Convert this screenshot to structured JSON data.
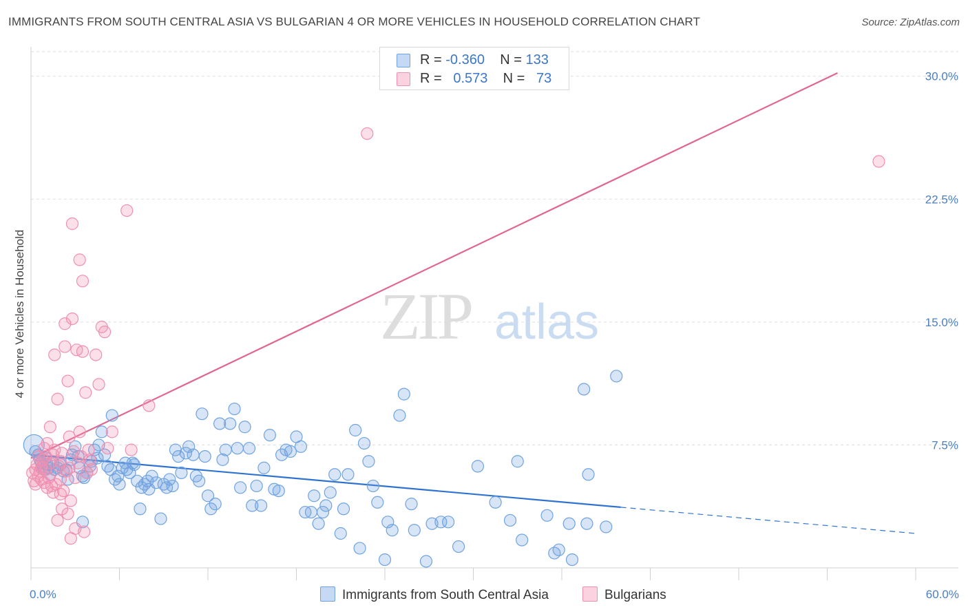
{
  "title": "IMMIGRANTS FROM SOUTH CENTRAL ASIA VS BULGARIAN 4 OR MORE VEHICLES IN HOUSEHOLD CORRELATION CHART",
  "source": "Source: ZipAtlas.com",
  "watermark": {
    "zip": "ZIP",
    "atlas": "atlas"
  },
  "legend": {
    "rows": [
      {
        "r_label": "R =",
        "r_value": "-0.360",
        "n_label": "N =",
        "n_value": "133",
        "color": "#6fa3e0"
      },
      {
        "r_label": "R =",
        "r_value": "0.573",
        "n_label": "N =",
        "n_value": "73",
        "color": "#f08fb0"
      }
    ]
  },
  "bottom_legend": {
    "items": [
      {
        "label": "Immigrants from South Central Asia",
        "color": "#6fa3e0"
      },
      {
        "label": "Bulgarians",
        "color": "#f08fb0"
      }
    ]
  },
  "chart_data": {
    "type": "scatter",
    "title": "IMMIGRANTS FROM SOUTH CENTRAL ASIA VS BULGARIAN 4 OR MORE VEHICLES IN HOUSEHOLD CORRELATION CHART",
    "xlabel": "",
    "ylabel": "4 or more Vehicles in Household",
    "xlim": [
      0,
      60
    ],
    "ylim": [
      0,
      31.5
    ],
    "x_tick_labels": [
      "0.0%",
      "60.0%"
    ],
    "y_ticks": [
      7.5,
      15.0,
      22.5,
      30.0
    ],
    "y_tick_labels": [
      "7.5%",
      "15.0%",
      "22.5%",
      "30.0%"
    ],
    "grid": true,
    "legend_position": "top-center",
    "series": [
      {
        "name": "Immigrants from South Central Asia",
        "color": "#6fa3e0",
        "r": -0.36,
        "n": 133,
        "trend": {
          "x0": 0,
          "y0": 6.9,
          "x1": 40,
          "y1": 3.7,
          "dash_to_x": 60,
          "dash_to_y": 2.1
        },
        "points": [
          [
            0.2,
            7.5
          ],
          [
            0.3,
            7.1
          ],
          [
            0.5,
            6.9
          ],
          [
            0.6,
            6.6
          ],
          [
            0.7,
            6.4
          ],
          [
            0.8,
            6.2
          ],
          [
            0.9,
            6.0
          ],
          [
            1.0,
            6.7
          ],
          [
            1.1,
            6.3
          ],
          [
            1.2,
            6.1
          ],
          [
            1.3,
            5.7
          ],
          [
            1.5,
            6.4
          ],
          [
            1.6,
            6.0
          ],
          [
            1.8,
            6.1
          ],
          [
            2.0,
            6.3
          ],
          [
            2.2,
            5.9
          ],
          [
            2.4,
            6.0
          ],
          [
            2.5,
            5.4
          ],
          [
            2.7,
            6.6
          ],
          [
            2.8,
            6.9
          ],
          [
            3.0,
            7.4
          ],
          [
            3.2,
            6.8
          ],
          [
            3.3,
            6.1
          ],
          [
            3.5,
            5.6
          ],
          [
            3.6,
            5.5
          ],
          [
            3.8,
            5.8
          ],
          [
            4.0,
            6.2
          ],
          [
            4.1,
            6.5
          ],
          [
            4.3,
            7.2
          ],
          [
            4.5,
            6.7
          ],
          [
            4.6,
            7.5
          ],
          [
            4.8,
            8.3
          ],
          [
            5.0,
            6.9
          ],
          [
            5.2,
            6.2
          ],
          [
            5.4,
            6.0
          ],
          [
            5.5,
            9.3
          ],
          [
            5.7,
            5.4
          ],
          [
            5.9,
            5.6
          ],
          [
            6.0,
            5.1
          ],
          [
            6.2,
            6.1
          ],
          [
            6.4,
            6.4
          ],
          [
            6.5,
            6.0
          ],
          [
            6.7,
            5.8
          ],
          [
            6.9,
            6.4
          ],
          [
            7.0,
            6.3
          ],
          [
            7.2,
            5.3
          ],
          [
            7.4,
            3.6
          ],
          [
            7.5,
            4.9
          ],
          [
            7.7,
            5.1
          ],
          [
            7.9,
            5.3
          ],
          [
            8.0,
            4.8
          ],
          [
            8.2,
            5.6
          ],
          [
            8.5,
            5.2
          ],
          [
            8.8,
            3.0
          ],
          [
            9.0,
            5.1
          ],
          [
            9.2,
            4.9
          ],
          [
            9.4,
            5.4
          ],
          [
            9.6,
            5.0
          ],
          [
            9.8,
            7.2
          ],
          [
            10.0,
            6.8
          ],
          [
            10.2,
            5.8
          ],
          [
            10.5,
            7.0
          ],
          [
            10.7,
            7.4
          ],
          [
            11.0,
            6.9
          ],
          [
            11.2,
            5.6
          ],
          [
            11.4,
            5.3
          ],
          [
            11.6,
            9.4
          ],
          [
            11.8,
            6.8
          ],
          [
            12.0,
            4.4
          ],
          [
            12.2,
            3.6
          ],
          [
            12.5,
            3.9
          ],
          [
            12.8,
            8.8
          ],
          [
            13.0,
            6.6
          ],
          [
            13.2,
            7.2
          ],
          [
            13.5,
            8.8
          ],
          [
            13.8,
            9.7
          ],
          [
            14.0,
            7.3
          ],
          [
            14.2,
            4.9
          ],
          [
            14.5,
            8.6
          ],
          [
            14.8,
            7.3
          ],
          [
            15.0,
            3.8
          ],
          [
            15.3,
            5.0
          ],
          [
            15.6,
            3.8
          ],
          [
            15.8,
            6.1
          ],
          [
            16.2,
            8.1
          ],
          [
            16.5,
            4.8
          ],
          [
            16.8,
            4.7
          ],
          [
            17.0,
            6.9
          ],
          [
            17.3,
            7.2
          ],
          [
            17.6,
            7.1
          ],
          [
            18.0,
            8.0
          ],
          [
            18.3,
            7.4
          ],
          [
            18.6,
            3.4
          ],
          [
            19.0,
            3.4
          ],
          [
            19.2,
            4.4
          ],
          [
            19.5,
            2.7
          ],
          [
            19.8,
            3.4
          ],
          [
            20.0,
            3.8
          ],
          [
            20.3,
            4.6
          ],
          [
            20.6,
            5.7
          ],
          [
            21.0,
            2.1
          ],
          [
            21.2,
            3.6
          ],
          [
            21.5,
            5.7
          ],
          [
            22.0,
            8.4
          ],
          [
            22.3,
            1.2
          ],
          [
            22.6,
            7.6
          ],
          [
            22.9,
            6.5
          ],
          [
            23.2,
            5.0
          ],
          [
            23.5,
            4.0
          ],
          [
            24.0,
            0.5
          ],
          [
            24.2,
            2.8
          ],
          [
            24.5,
            2.3
          ],
          [
            25.0,
            9.3
          ],
          [
            25.3,
            10.6
          ],
          [
            25.8,
            3.9
          ],
          [
            26.0,
            2.3
          ],
          [
            26.8,
            0.4
          ],
          [
            27.2,
            2.7
          ],
          [
            27.8,
            2.8
          ],
          [
            28.3,
            2.8
          ],
          [
            29.0,
            1.3
          ],
          [
            30.3,
            6.2
          ],
          [
            31.5,
            4.0
          ],
          [
            32.5,
            2.9
          ],
          [
            33.0,
            6.5
          ],
          [
            33.3,
            1.7
          ],
          [
            35.0,
            3.2
          ],
          [
            35.5,
            0.9
          ],
          [
            35.8,
            1.1
          ],
          [
            36.5,
            2.7
          ],
          [
            36.7,
            0.5
          ],
          [
            37.5,
            10.9
          ],
          [
            37.7,
            2.7
          ],
          [
            37.8,
            5.7
          ],
          [
            39.0,
            2.5
          ],
          [
            39.7,
            11.7
          ],
          [
            3.5,
            2.8
          ]
        ]
      },
      {
        "name": "Bulgarians",
        "color": "#f08fb0",
        "r": 0.573,
        "n": 73,
        "trend": {
          "x0": 0,
          "y0": 6.7,
          "x1": 54.7,
          "y1": 30.2
        },
        "points": [
          [
            0.1,
            5.8
          ],
          [
            0.2,
            5.3
          ],
          [
            0.3,
            6.0
          ],
          [
            0.3,
            5.1
          ],
          [
            0.4,
            6.3
          ],
          [
            0.5,
            5.6
          ],
          [
            0.5,
            6.8
          ],
          [
            0.6,
            5.9
          ],
          [
            0.7,
            6.1
          ],
          [
            0.7,
            5.4
          ],
          [
            0.8,
            6.6
          ],
          [
            0.9,
            7.3
          ],
          [
            0.9,
            5.2
          ],
          [
            1.0,
            6.0
          ],
          [
            1.1,
            4.9
          ],
          [
            1.1,
            7.6
          ],
          [
            1.2,
            5.5
          ],
          [
            1.3,
            6.4
          ],
          [
            1.3,
            8.6
          ],
          [
            1.4,
            5.0
          ],
          [
            1.5,
            4.6
          ],
          [
            1.5,
            6.9
          ],
          [
            1.6,
            7.2
          ],
          [
            1.6,
            13.0
          ],
          [
            1.7,
            5.1
          ],
          [
            1.8,
            10.3
          ],
          [
            1.8,
            2.9
          ],
          [
            1.9,
            6.2
          ],
          [
            2.0,
            4.5
          ],
          [
            2.0,
            5.4
          ],
          [
            2.1,
            7.0
          ],
          [
            2.1,
            3.6
          ],
          [
            2.2,
            4.7
          ],
          [
            2.3,
            14.9
          ],
          [
            2.3,
            13.5
          ],
          [
            2.4,
            5.9
          ],
          [
            2.5,
            3.3
          ],
          [
            2.5,
            11.4
          ],
          [
            2.6,
            8.0
          ],
          [
            2.6,
            6.1
          ],
          [
            2.7,
            4.1
          ],
          [
            2.7,
            1.8
          ],
          [
            2.8,
            15.2
          ],
          [
            2.8,
            21.0
          ],
          [
            2.9,
            7.1
          ],
          [
            3.0,
            2.4
          ],
          [
            3.0,
            5.5
          ],
          [
            3.1,
            13.3
          ],
          [
            3.2,
            6.4
          ],
          [
            3.3,
            18.8
          ],
          [
            3.3,
            8.3
          ],
          [
            3.4,
            6.8
          ],
          [
            3.5,
            17.5
          ],
          [
            3.5,
            13.2
          ],
          [
            3.6,
            2.2
          ],
          [
            3.7,
            10.7
          ],
          [
            3.8,
            5.8
          ],
          [
            3.9,
            7.2
          ],
          [
            4.0,
            6.6
          ],
          [
            4.1,
            6.0
          ],
          [
            4.4,
            13.0
          ],
          [
            4.6,
            11.2
          ],
          [
            4.8,
            14.7
          ],
          [
            5.0,
            14.4
          ],
          [
            5.2,
            7.3
          ],
          [
            5.5,
            8.3
          ],
          [
            6.5,
            21.8
          ],
          [
            6.8,
            7.2
          ],
          [
            8.0,
            9.9
          ],
          [
            22.8,
            26.5
          ],
          [
            57.5,
            24.8
          ],
          [
            1.0,
            6.8
          ],
          [
            2.0,
            6.5
          ]
        ]
      }
    ]
  }
}
